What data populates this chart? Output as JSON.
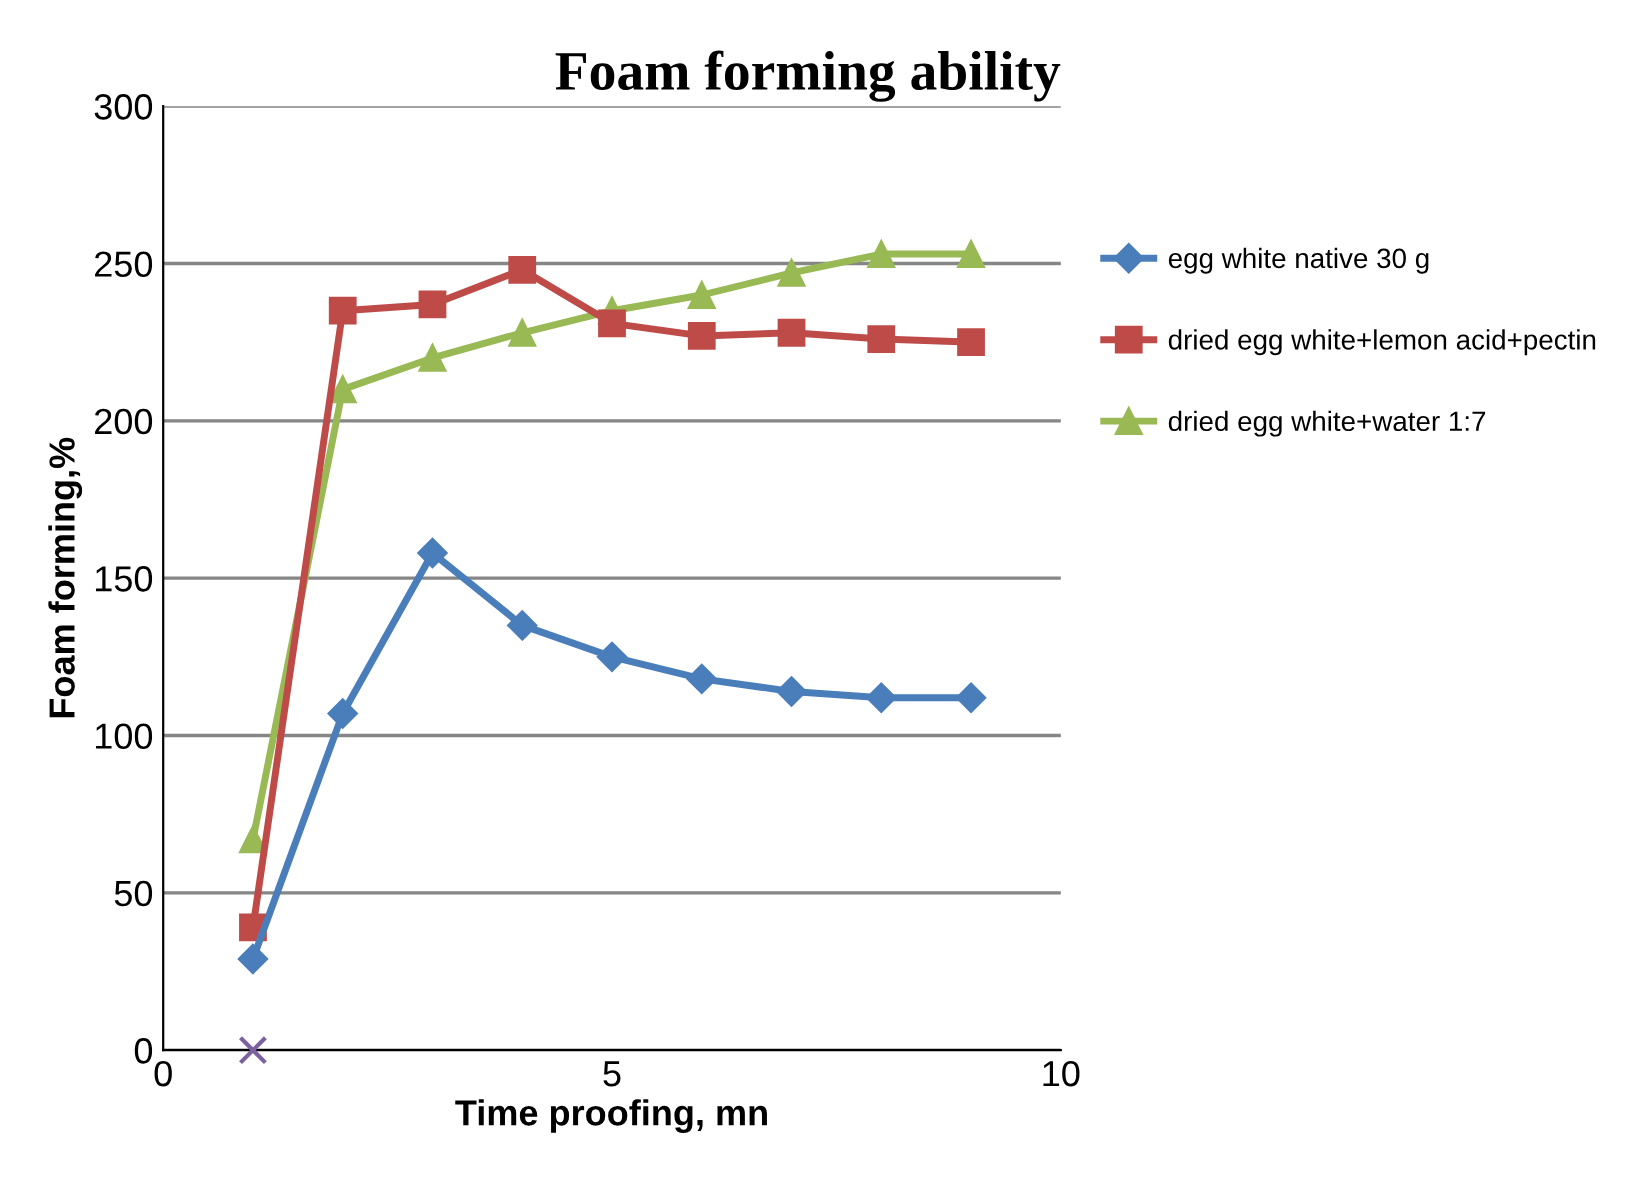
{
  "chart_data": {
    "type": "line",
    "title": "Foam forming ability",
    "xlabel": "Time proofing, mn",
    "ylabel": "Foam forming,%",
    "xlim": [
      0,
      10
    ],
    "xticks": [
      0,
      5,
      10
    ],
    "ylim": [
      0,
      300
    ],
    "yticks": [
      0,
      50,
      100,
      150,
      200,
      250,
      300
    ],
    "grid": "y",
    "legend": "right",
    "line_style": "solid",
    "series": [
      {
        "name": "egg white native 30 g",
        "color": "#4a7ebb",
        "marker": "diamond",
        "x": [
          1,
          2,
          3,
          4,
          5,
          6,
          7,
          8,
          9
        ],
        "values": [
          29,
          107,
          158,
          135,
          125,
          118,
          114,
          112,
          112
        ]
      },
      {
        "name": "dried egg white+lemon acid+pectin",
        "color": "#be4b48",
        "marker": "square",
        "x": [
          1,
          2,
          3,
          4,
          5,
          6,
          7,
          8,
          9
        ],
        "values": [
          39,
          235,
          237,
          248,
          231,
          227,
          228,
          226,
          225
        ]
      },
      {
        "name": "dried egg white+water 1:7",
        "color": "#98b954",
        "marker": "triangle",
        "x": [
          1,
          2,
          3,
          4,
          5,
          6,
          7,
          8,
          9
        ],
        "values": [
          67,
          210,
          220,
          228,
          235,
          240,
          247,
          253,
          253
        ]
      },
      {
        "type": "scatter",
        "color": "#7d60a0",
        "marker": "cross",
        "x": [
          1
        ],
        "values": [
          0
        ]
      }
    ]
  }
}
